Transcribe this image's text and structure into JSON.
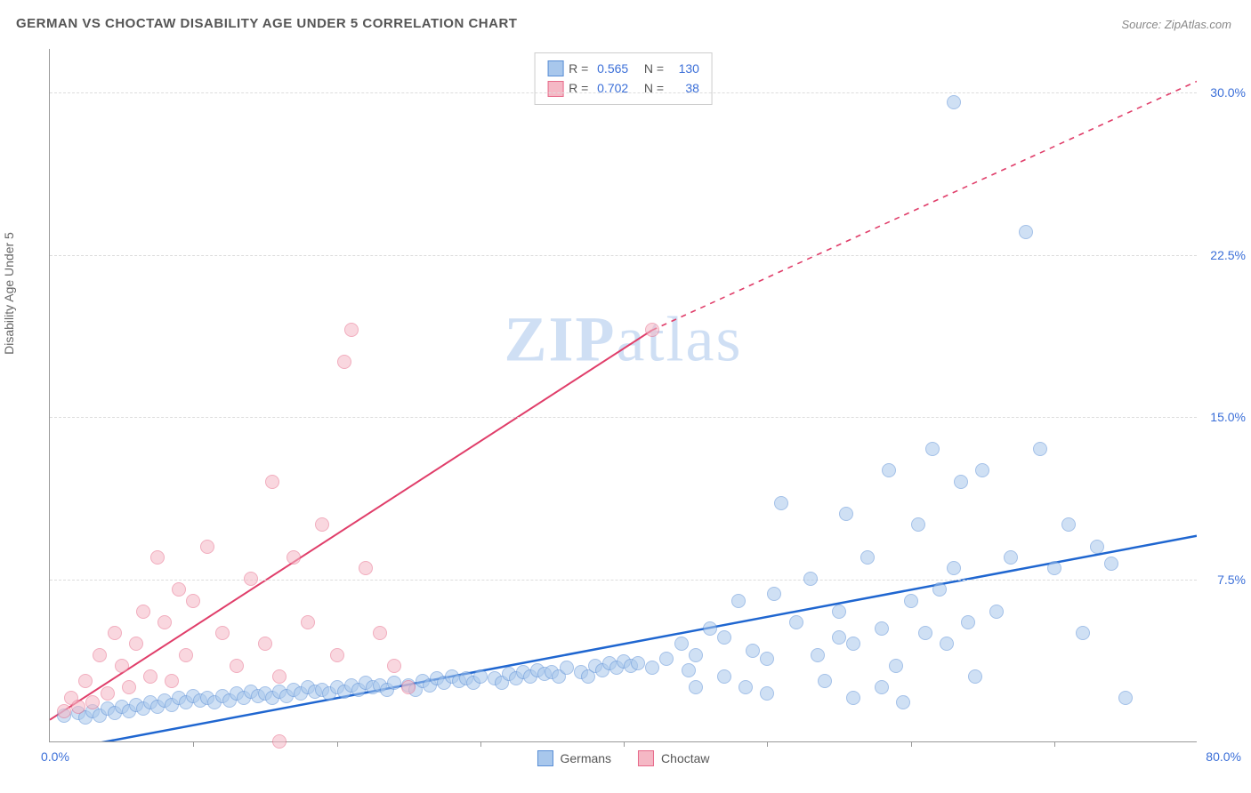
{
  "title": "GERMAN VS CHOCTAW DISABILITY AGE UNDER 5 CORRELATION CHART",
  "source_prefix": "Source: ",
  "source": "ZipAtlas.com",
  "y_axis_label": "Disability Age Under 5",
  "watermark_a": "ZIP",
  "watermark_b": "atlas",
  "chart": {
    "type": "scatter",
    "xlim": [
      0,
      80
    ],
    "ylim": [
      0,
      32
    ],
    "x_start_label": "0.0%",
    "x_end_label": "80.0%",
    "x_ticks": [
      10,
      20,
      30,
      40,
      50,
      60,
      70
    ],
    "y_ticks": [
      {
        "v": 7.5,
        "label": "7.5%"
      },
      {
        "v": 15.0,
        "label": "15.0%"
      },
      {
        "v": 22.5,
        "label": "22.5%"
      },
      {
        "v": 30.0,
        "label": "30.0%"
      }
    ],
    "grid_color": "#dddddd",
    "background_color": "#ffffff",
    "point_radius": 8,
    "point_opacity": 0.55,
    "series": [
      {
        "name": "Germans",
        "color_fill": "#a8c7ec",
        "color_stroke": "#5a8fd6",
        "R": "0.565",
        "N": "130",
        "trend": {
          "x1": 0,
          "y1": -0.5,
          "x2": 80,
          "y2": 9.5,
          "dash_after_x": 80,
          "stroke": "#1f66d0",
          "width": 2.5
        },
        "points": [
          [
            1,
            1.2
          ],
          [
            2,
            1.3
          ],
          [
            2.5,
            1.1
          ],
          [
            3,
            1.4
          ],
          [
            3.5,
            1.2
          ],
          [
            4,
            1.5
          ],
          [
            4.5,
            1.3
          ],
          [
            5,
            1.6
          ],
          [
            5.5,
            1.4
          ],
          [
            6,
            1.7
          ],
          [
            6.5,
            1.5
          ],
          [
            7,
            1.8
          ],
          [
            7.5,
            1.6
          ],
          [
            8,
            1.9
          ],
          [
            8.5,
            1.7
          ],
          [
            9,
            2.0
          ],
          [
            9.5,
            1.8
          ],
          [
            10,
            2.1
          ],
          [
            10.5,
            1.9
          ],
          [
            11,
            2.0
          ],
          [
            11.5,
            1.8
          ],
          [
            12,
            2.1
          ],
          [
            12.5,
            1.9
          ],
          [
            13,
            2.2
          ],
          [
            13.5,
            2.0
          ],
          [
            14,
            2.3
          ],
          [
            14.5,
            2.1
          ],
          [
            15,
            2.2
          ],
          [
            15.5,
            2.0
          ],
          [
            16,
            2.3
          ],
          [
            16.5,
            2.1
          ],
          [
            17,
            2.4
          ],
          [
            17.5,
            2.2
          ],
          [
            18,
            2.5
          ],
          [
            18.5,
            2.3
          ],
          [
            19,
            2.4
          ],
          [
            19.5,
            2.2
          ],
          [
            20,
            2.5
          ],
          [
            20.5,
            2.3
          ],
          [
            21,
            2.6
          ],
          [
            21.5,
            2.4
          ],
          [
            22,
            2.7
          ],
          [
            22.5,
            2.5
          ],
          [
            23,
            2.6
          ],
          [
            23.5,
            2.4
          ],
          [
            24,
            2.7
          ],
          [
            25,
            2.6
          ],
          [
            25.5,
            2.4
          ],
          [
            26,
            2.8
          ],
          [
            26.5,
            2.6
          ],
          [
            27,
            2.9
          ],
          [
            27.5,
            2.7
          ],
          [
            28,
            3.0
          ],
          [
            28.5,
            2.8
          ],
          [
            29,
            2.9
          ],
          [
            29.5,
            2.7
          ],
          [
            30,
            3.0
          ],
          [
            31,
            2.9
          ],
          [
            31.5,
            2.7
          ],
          [
            32,
            3.1
          ],
          [
            32.5,
            2.9
          ],
          [
            33,
            3.2
          ],
          [
            33.5,
            3.0
          ],
          [
            34,
            3.3
          ],
          [
            34.5,
            3.1
          ],
          [
            35,
            3.2
          ],
          [
            35.5,
            3.0
          ],
          [
            36,
            3.4
          ],
          [
            37,
            3.2
          ],
          [
            37.5,
            3.0
          ],
          [
            38,
            3.5
          ],
          [
            38.5,
            3.3
          ],
          [
            39,
            3.6
          ],
          [
            39.5,
            3.4
          ],
          [
            40,
            3.7
          ],
          [
            40.5,
            3.5
          ],
          [
            41,
            3.6
          ],
          [
            42,
            3.4
          ],
          [
            43,
            3.8
          ],
          [
            44,
            4.5
          ],
          [
            44.5,
            3.3
          ],
          [
            45,
            4.0
          ],
          [
            46,
            5.2
          ],
          [
            47,
            4.8
          ],
          [
            48,
            6.5
          ],
          [
            48.5,
            2.5
          ],
          [
            49,
            4.2
          ],
          [
            50,
            3.8
          ],
          [
            50.5,
            6.8
          ],
          [
            51,
            11.0
          ],
          [
            52,
            5.5
          ],
          [
            53,
            7.5
          ],
          [
            53.5,
            4.0
          ],
          [
            54,
            2.8
          ],
          [
            55,
            6.0
          ],
          [
            55.5,
            10.5
          ],
          [
            56,
            4.5
          ],
          [
            57,
            8.5
          ],
          [
            58,
            5.2
          ],
          [
            58.5,
            12.5
          ],
          [
            59,
            3.5
          ],
          [
            59.5,
            1.8
          ],
          [
            60,
            6.5
          ],
          [
            60.5,
            10.0
          ],
          [
            61,
            5.0
          ],
          [
            61.5,
            13.5
          ],
          [
            62,
            7.0
          ],
          [
            62.5,
            4.5
          ],
          [
            63,
            8.0
          ],
          [
            63.5,
            12.0
          ],
          [
            64,
            5.5
          ],
          [
            64.5,
            3.0
          ],
          [
            65,
            12.5
          ],
          [
            66,
            6.0
          ],
          [
            67,
            8.5
          ],
          [
            68,
            23.5
          ],
          [
            69,
            13.5
          ],
          [
            70,
            8.0
          ],
          [
            71,
            10.0
          ],
          [
            72,
            5.0
          ],
          [
            73,
            9.0
          ],
          [
            74,
            8.2
          ],
          [
            75,
            2.0
          ],
          [
            63,
            29.5
          ],
          [
            55,
            4.8
          ],
          [
            50,
            2.2
          ],
          [
            47,
            3.0
          ],
          [
            45,
            2.5
          ],
          [
            56,
            2.0
          ],
          [
            58,
            2.5
          ]
        ]
      },
      {
        "name": "Choctaw",
        "color_fill": "#f5b8c5",
        "color_stroke": "#e76b8a",
        "R": "0.702",
        "N": "38",
        "trend": {
          "x1": 0,
          "y1": 1.0,
          "x2": 42,
          "y2": 19.0,
          "dash_after_x": 42,
          "dash_x2": 80,
          "dash_y2": 30.5,
          "stroke": "#e03e6a",
          "width": 2
        },
        "points": [
          [
            1,
            1.4
          ],
          [
            1.5,
            2.0
          ],
          [
            2,
            1.6
          ],
          [
            2.5,
            2.8
          ],
          [
            3,
            1.8
          ],
          [
            3.5,
            4.0
          ],
          [
            4,
            2.2
          ],
          [
            4.5,
            5.0
          ],
          [
            5,
            3.5
          ],
          [
            5.5,
            2.5
          ],
          [
            6,
            4.5
          ],
          [
            6.5,
            6.0
          ],
          [
            7,
            3.0
          ],
          [
            7.5,
            8.5
          ],
          [
            8,
            5.5
          ],
          [
            8.5,
            2.8
          ],
          [
            9,
            7.0
          ],
          [
            9.5,
            4.0
          ],
          [
            10,
            6.5
          ],
          [
            11,
            9.0
          ],
          [
            12,
            5.0
          ],
          [
            13,
            3.5
          ],
          [
            14,
            7.5
          ],
          [
            15,
            4.5
          ],
          [
            15.5,
            12.0
          ],
          [
            16,
            3.0
          ],
          [
            17,
            8.5
          ],
          [
            18,
            5.5
          ],
          [
            19,
            10.0
          ],
          [
            20,
            4.0
          ],
          [
            20.5,
            17.5
          ],
          [
            21,
            19.0
          ],
          [
            22,
            8.0
          ],
          [
            23,
            5.0
          ],
          [
            24,
            3.5
          ],
          [
            16,
            0.0
          ],
          [
            25,
            2.5
          ],
          [
            42,
            19.0
          ]
        ]
      }
    ]
  },
  "bottom_legend": [
    {
      "label": "Germans",
      "fill": "#a8c7ec",
      "stroke": "#5a8fd6"
    },
    {
      "label": "Choctaw",
      "fill": "#f5b8c5",
      "stroke": "#e76b8a"
    }
  ]
}
